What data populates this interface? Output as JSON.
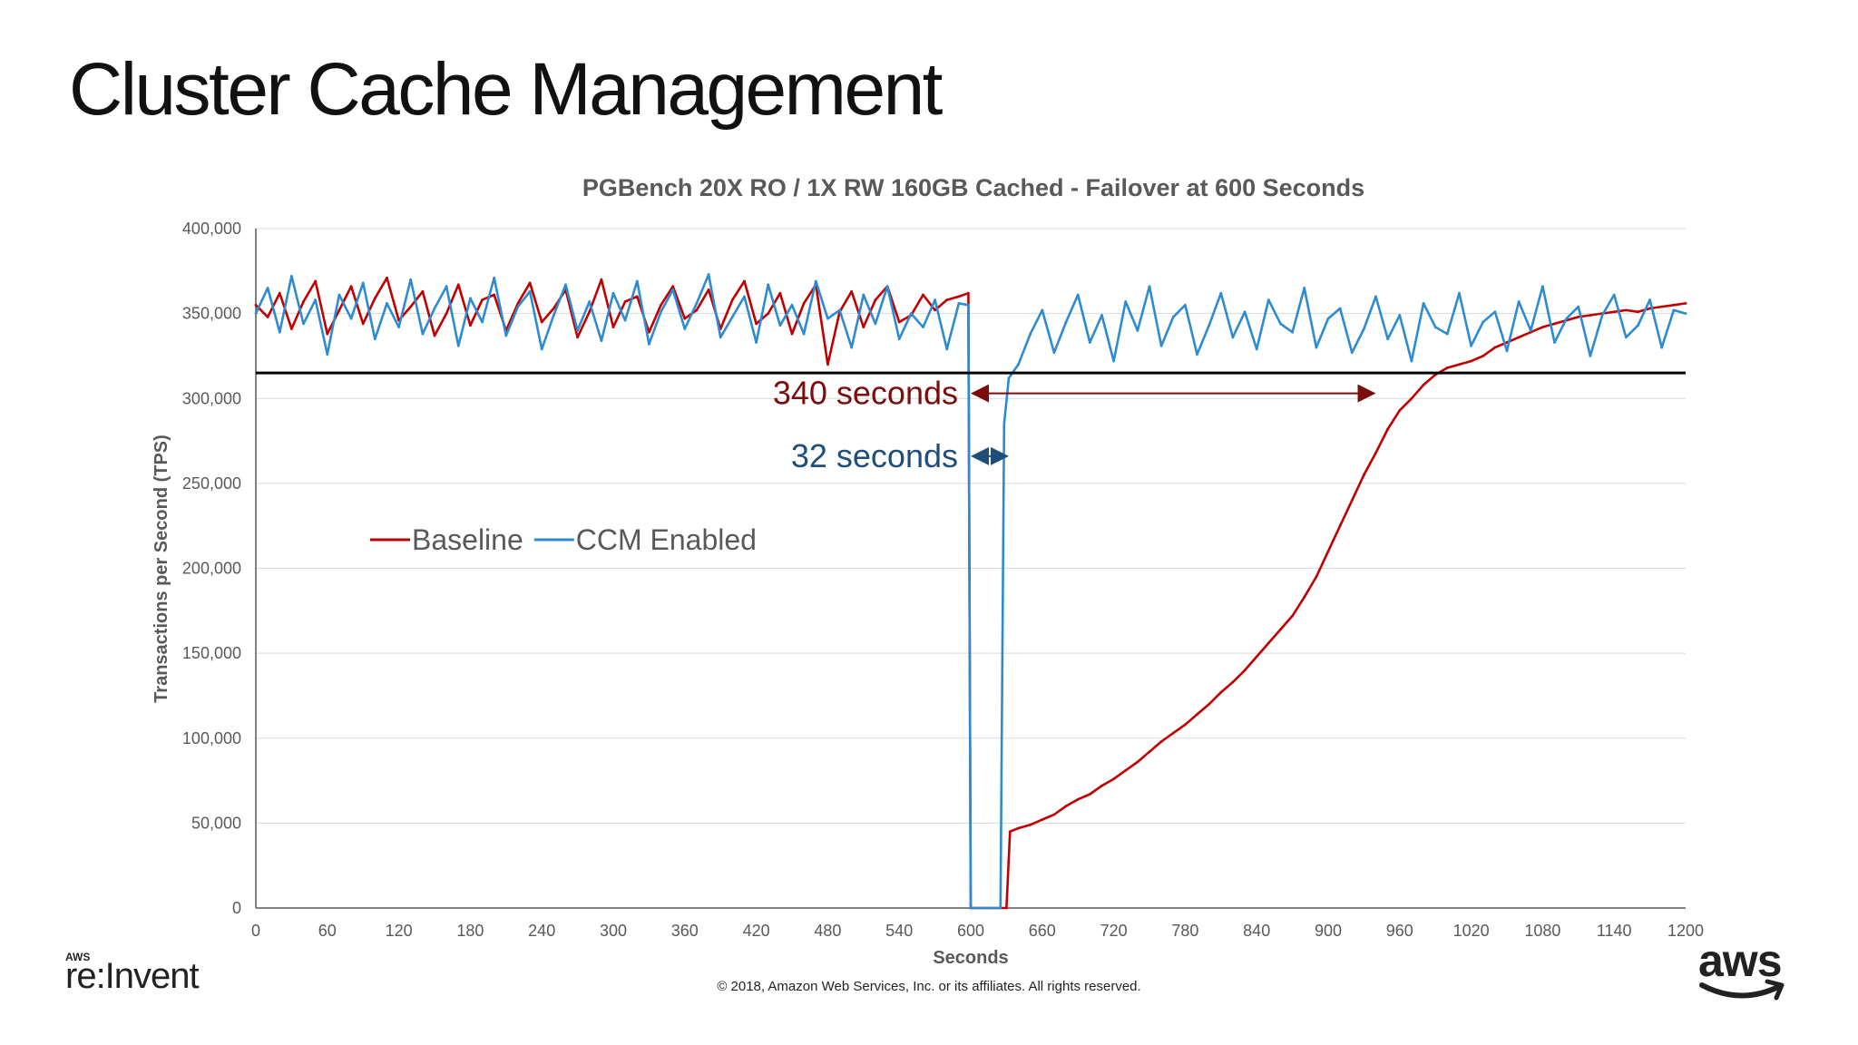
{
  "slide": {
    "title": "Cluster Cache Management",
    "copyright": "© 2018, Amazon Web Services, Inc. or its affiliates. All rights reserved.",
    "logos": {
      "left_small": "AWS",
      "left_main": "re:Invent",
      "right": "aws"
    }
  },
  "chart_data": {
    "type": "line",
    "title": "PGBench 20X RO / 1X RW 160GB Cached - Failover at 600 Seconds",
    "xlabel": "Seconds",
    "ylabel": "Transactions per Second (TPS)",
    "xlim": [
      0,
      1200
    ],
    "ylim": [
      0,
      400000
    ],
    "x_ticks": [
      "0",
      "60",
      "120",
      "180",
      "240",
      "300",
      "360",
      "420",
      "480",
      "540",
      "600",
      "660",
      "720",
      "780",
      "840",
      "900",
      "960",
      "1020",
      "1080",
      "1140",
      "1200"
    ],
    "y_ticks": [
      "0",
      "50,000",
      "100,000",
      "150,000",
      "200,000",
      "250,000",
      "300,000",
      "350,000",
      "400,000"
    ],
    "grid": true,
    "legend_position": "left-middle",
    "reference_line": {
      "y": 315000,
      "color": "#000000"
    },
    "series": [
      {
        "name": "Baseline",
        "color": "#C00000",
        "x": [
          0,
          10,
          20,
          30,
          40,
          50,
          60,
          70,
          80,
          90,
          100,
          110,
          120,
          130,
          140,
          150,
          160,
          170,
          180,
          190,
          200,
          210,
          220,
          230,
          240,
          250,
          260,
          270,
          280,
          290,
          300,
          310,
          320,
          330,
          340,
          350,
          360,
          370,
          380,
          390,
          400,
          410,
          420,
          430,
          440,
          450,
          460,
          470,
          480,
          490,
          500,
          510,
          520,
          530,
          540,
          550,
          560,
          570,
          580,
          590,
          598,
          600,
          630,
          633,
          640,
          650,
          660,
          670,
          680,
          690,
          700,
          710,
          720,
          730,
          740,
          750,
          760,
          770,
          780,
          790,
          800,
          810,
          820,
          830,
          840,
          850,
          860,
          870,
          880,
          890,
          900,
          910,
          920,
          930,
          940,
          950,
          960,
          970,
          980,
          990,
          1000,
          1010,
          1020,
          1030,
          1040,
          1050,
          1060,
          1070,
          1080,
          1090,
          1100,
          1110,
          1120,
          1130,
          1140,
          1150,
          1160,
          1170,
          1180,
          1190,
          1200
        ],
        "values": [
          355000,
          348000,
          362000,
          341000,
          357000,
          369000,
          338000,
          352000,
          366000,
          344000,
          359000,
          371000,
          346000,
          354000,
          363000,
          337000,
          350000,
          367000,
          343000,
          358000,
          361000,
          340000,
          356000,
          368000,
          345000,
          353000,
          364000,
          336000,
          351000,
          370000,
          342000,
          357000,
          360000,
          339000,
          355000,
          366000,
          347000,
          352000,
          364000,
          341000,
          358000,
          369000,
          344000,
          350000,
          362000,
          338000,
          356000,
          367000,
          320000,
          351000,
          363000,
          342000,
          358000,
          366000,
          345000,
          349000,
          361000,
          352000,
          358000,
          360000,
          362000,
          0,
          0,
          45000,
          47000,
          49000,
          52000,
          55000,
          60000,
          64000,
          67000,
          72000,
          76000,
          81000,
          86000,
          92000,
          98000,
          103000,
          108000,
          114000,
          120000,
          127000,
          133000,
          140000,
          148000,
          156000,
          164000,
          172000,
          183000,
          195000,
          210000,
          225000,
          240000,
          255000,
          268000,
          282000,
          293000,
          300000,
          308000,
          314000,
          318000,
          320000,
          322000,
          325000,
          330000,
          333000,
          336000,
          339000,
          342000,
          344000,
          346000,
          348000,
          349000,
          350000,
          351000,
          352000,
          351000,
          353000,
          354000,
          355000,
          356000
        ]
      },
      {
        "name": "CCM Enabled",
        "color": "#2E8BD0",
        "x": [
          0,
          10,
          20,
          30,
          40,
          50,
          60,
          70,
          80,
          90,
          100,
          110,
          120,
          130,
          140,
          150,
          160,
          170,
          180,
          190,
          200,
          210,
          220,
          230,
          240,
          250,
          260,
          270,
          280,
          290,
          300,
          310,
          320,
          330,
          340,
          350,
          360,
          370,
          380,
          390,
          400,
          410,
          420,
          430,
          440,
          450,
          460,
          470,
          480,
          490,
          500,
          510,
          520,
          530,
          540,
          550,
          560,
          570,
          580,
          590,
          598,
          600,
          625,
          628,
          632,
          640,
          650,
          660,
          670,
          680,
          690,
          700,
          710,
          720,
          730,
          740,
          750,
          760,
          770,
          780,
          790,
          800,
          810,
          820,
          830,
          840,
          850,
          860,
          870,
          880,
          890,
          900,
          910,
          920,
          930,
          940,
          950,
          960,
          970,
          980,
          990,
          1000,
          1010,
          1020,
          1030,
          1040,
          1050,
          1060,
          1070,
          1080,
          1090,
          1100,
          1110,
          1120,
          1130,
          1140,
          1150,
          1160,
          1170,
          1180,
          1190,
          1200
        ],
        "values": [
          350000,
          365000,
          339000,
          372000,
          344000,
          358000,
          326000,
          361000,
          347000,
          368000,
          335000,
          356000,
          342000,
          370000,
          338000,
          353000,
          366000,
          331000,
          359000,
          345000,
          371000,
          337000,
          354000,
          363000,
          329000,
          349000,
          367000,
          340000,
          357000,
          334000,
          362000,
          346000,
          369000,
          332000,
          351000,
          364000,
          341000,
          356000,
          373000,
          336000,
          348000,
          360000,
          333000,
          367000,
          343000,
          355000,
          338000,
          369000,
          347000,
          352000,
          330000,
          361000,
          344000,
          366000,
          335000,
          350000,
          342000,
          358000,
          329000,
          356000,
          355000,
          0,
          0,
          285000,
          312000,
          320000,
          338000,
          352000,
          327000,
          345000,
          361000,
          333000,
          349000,
          322000,
          357000,
          340000,
          366000,
          331000,
          348000,
          355000,
          326000,
          343000,
          362000,
          336000,
          351000,
          329000,
          358000,
          344000,
          339000,
          365000,
          330000,
          347000,
          353000,
          327000,
          341000,
          360000,
          335000,
          349000,
          322000,
          356000,
          342000,
          338000,
          362000,
          331000,
          345000,
          351000,
          328000,
          357000,
          340000,
          366000,
          333000,
          347000,
          354000,
          325000,
          349000,
          361000,
          336000,
          343000,
          358000,
          330000,
          352000,
          350000
        ]
      }
    ],
    "annotations": [
      {
        "text": "340 seconds",
        "color": "#7B0D0D",
        "x_start": 600,
        "x_end": 940,
        "y": 303000
      },
      {
        "text": "32 seconds",
        "color": "#1F4E79",
        "x_start": 600,
        "x_end": 632,
        "y": 266000
      }
    ]
  }
}
